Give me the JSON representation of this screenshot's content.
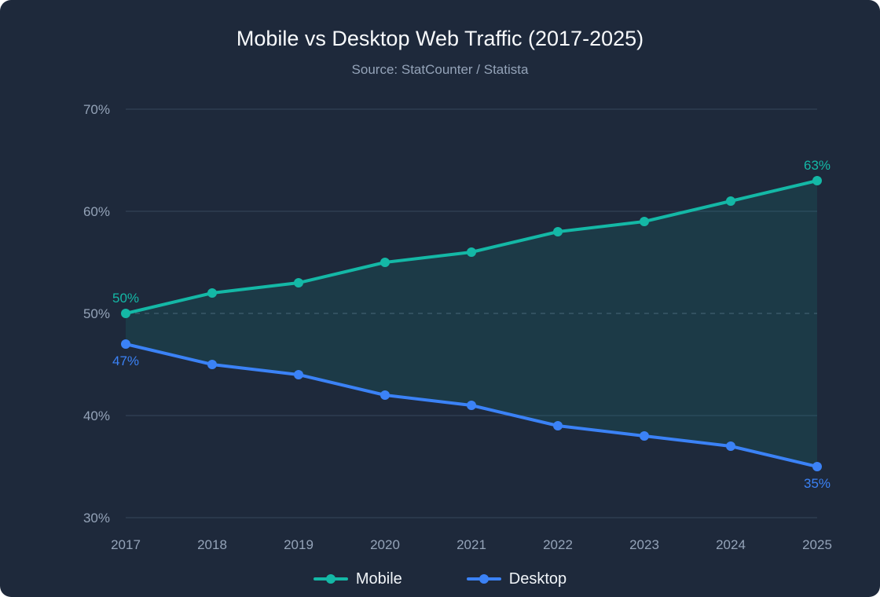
{
  "header": {
    "title": "Mobile vs Desktop Web Traffic (2017-2025)",
    "subtitle": "Source: StatCounter / Statista"
  },
  "colors": {
    "background": "#1e293b",
    "mobile": "#14b8a6",
    "desktop": "#3b82f6",
    "grid": "#334155",
    "text_muted": "#94a3b8"
  },
  "chart_data": {
    "type": "line",
    "title": "Mobile vs Desktop Web Traffic (2017-2025)",
    "subtitle": "Source: StatCounter / Statista",
    "x": [
      "2017",
      "2018",
      "2019",
      "2020",
      "2021",
      "2022",
      "2023",
      "2024",
      "2025"
    ],
    "series": [
      {
        "name": "Mobile",
        "color": "#14b8a6",
        "values": [
          50,
          52,
          53,
          55,
          56,
          58,
          59,
          61,
          63
        ]
      },
      {
        "name": "Desktop",
        "color": "#3b82f6",
        "values": [
          47,
          45,
          44,
          42,
          41,
          39,
          38,
          37,
          35
        ]
      }
    ],
    "ylim": [
      30,
      70
    ],
    "yticks": [
      30,
      40,
      50,
      60,
      70
    ],
    "ytick_labels": [
      "30%",
      "40%",
      "50%",
      "60%",
      "70%"
    ],
    "reference_line": 50,
    "grid": true,
    "shaded_gap": true,
    "annotations": [
      {
        "series": "Mobile",
        "x": "2017",
        "text": "50%"
      },
      {
        "series": "Mobile",
        "x": "2025",
        "text": "63%"
      },
      {
        "series": "Desktop",
        "x": "2017",
        "text": "47%"
      },
      {
        "series": "Desktop",
        "x": "2025",
        "text": "35%"
      }
    ],
    "legend": "bottom-center"
  }
}
